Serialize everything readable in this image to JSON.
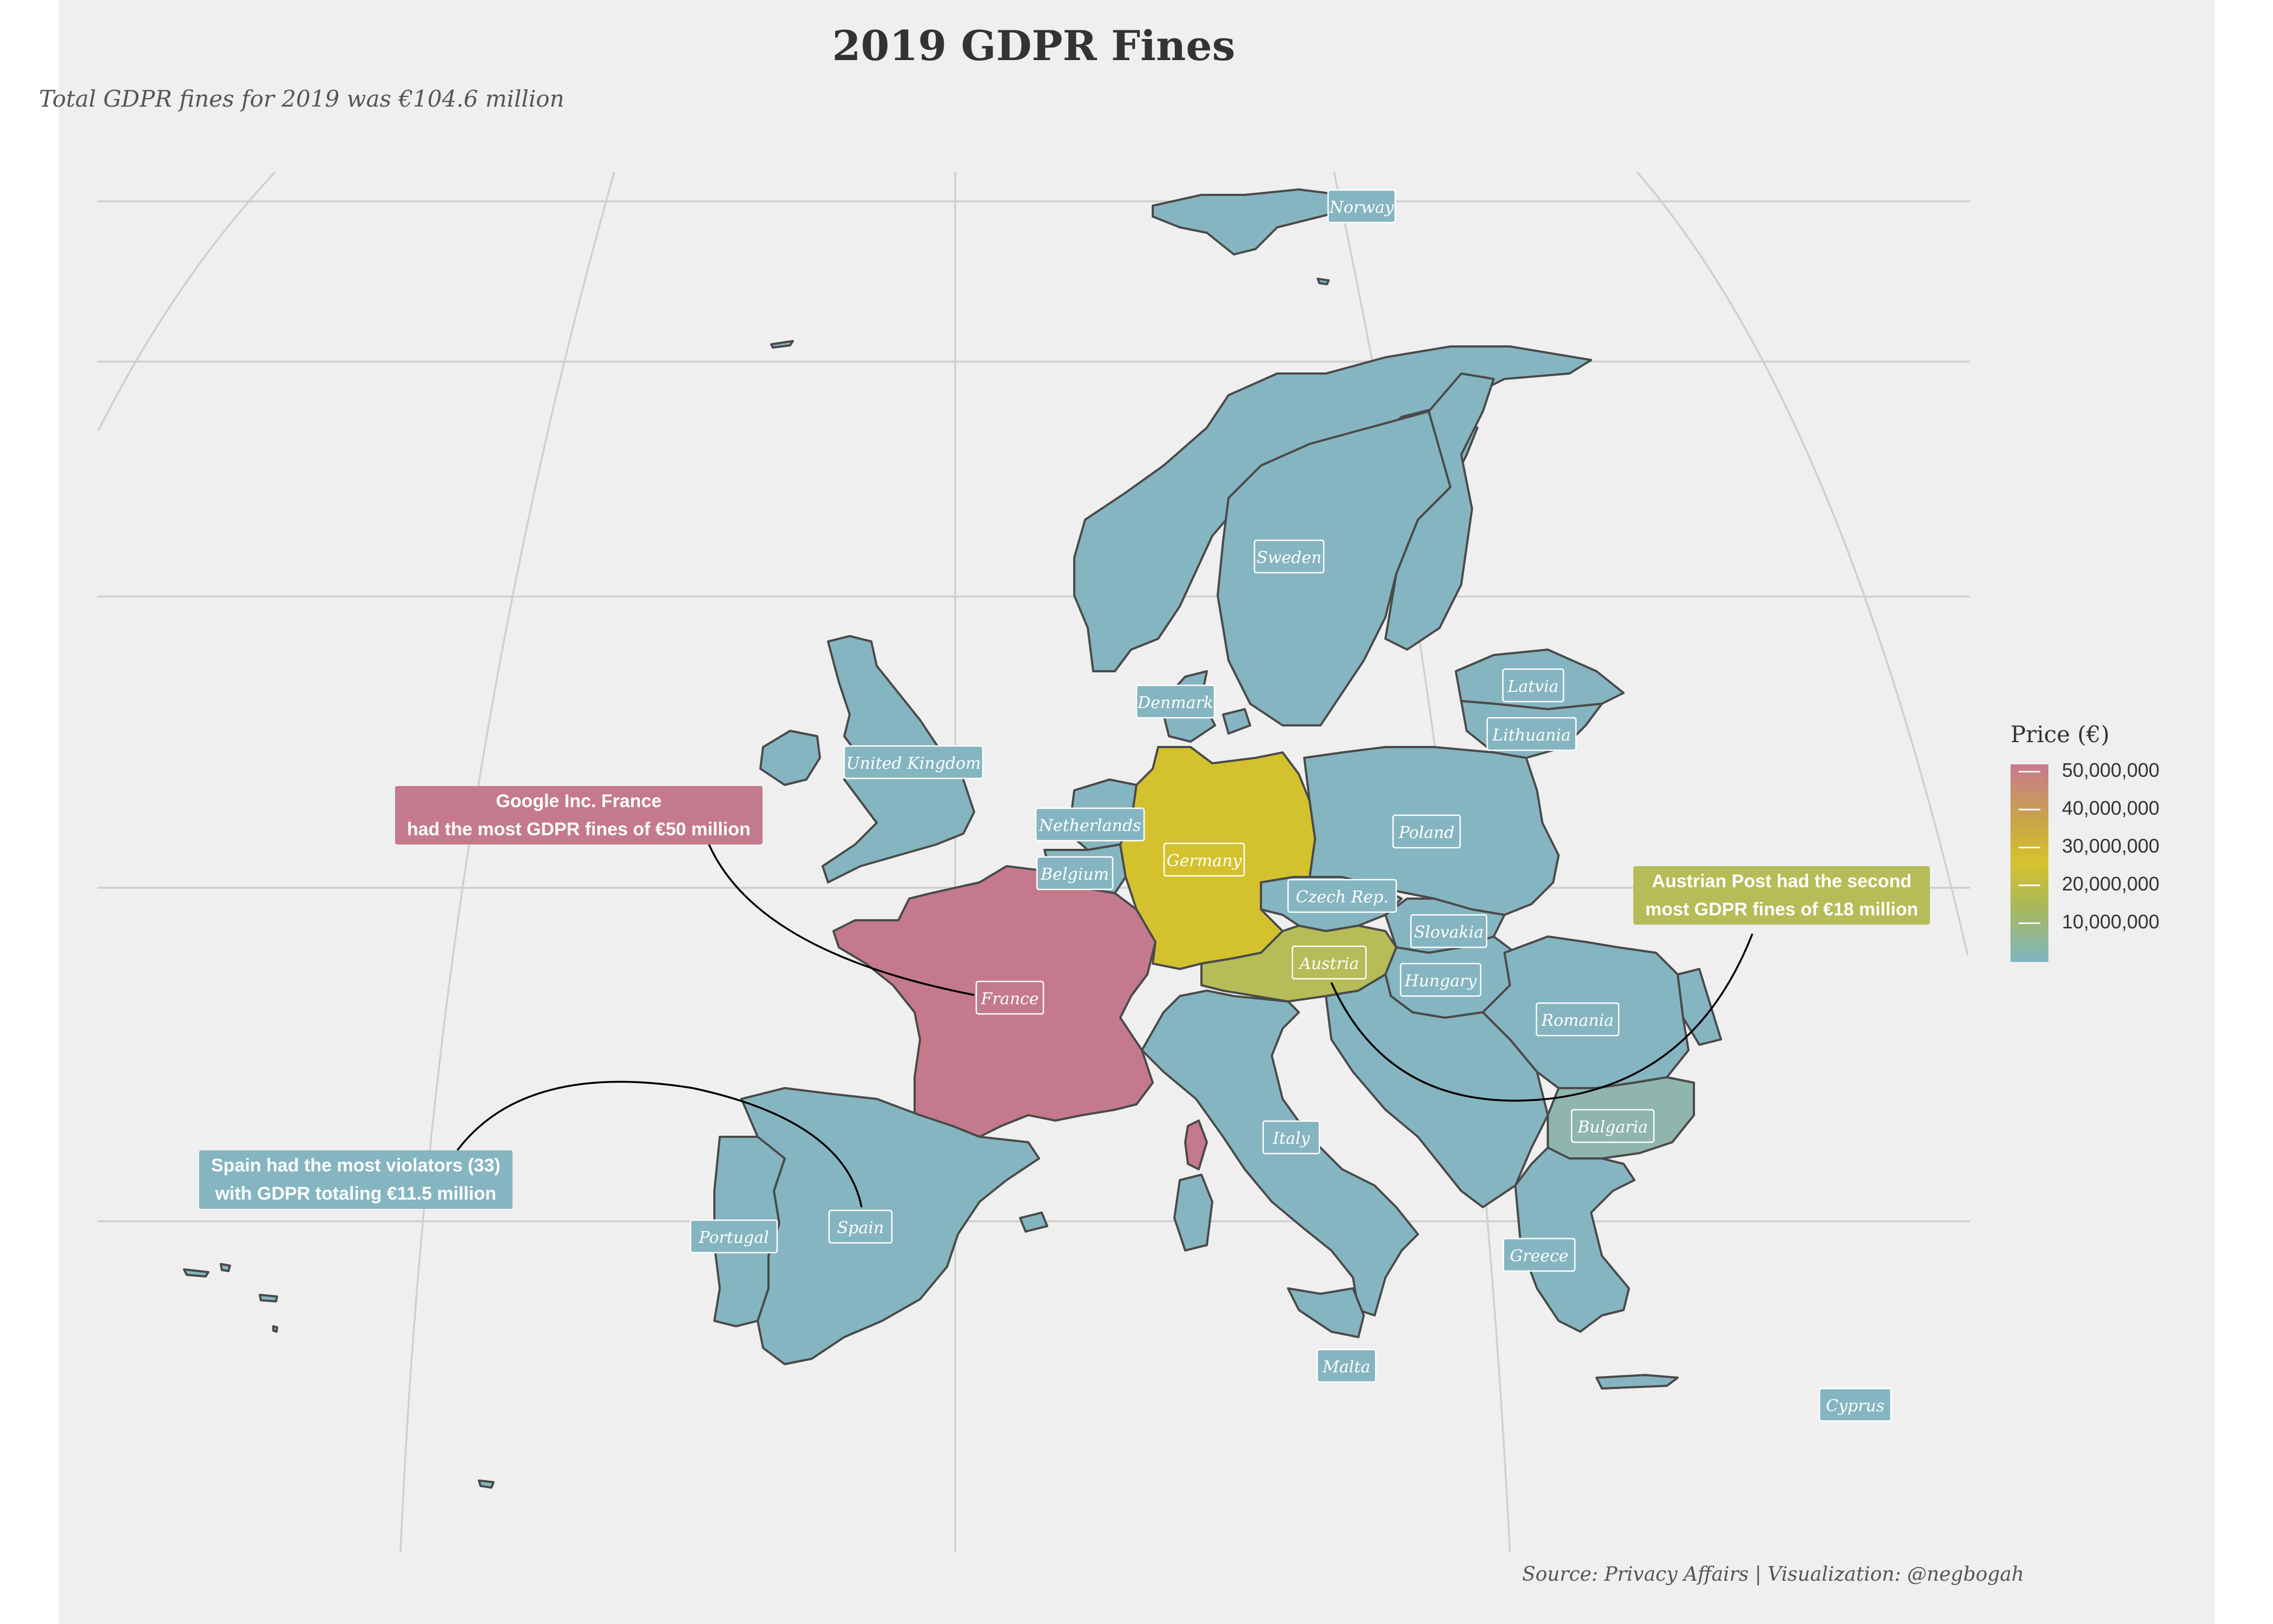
{
  "title": "2019 GDPR Fines",
  "subtitle": "Total GDPR fines for 2019 was €104.6 million",
  "caption": "Source: Privacy Affairs | Visualization: @negbogah",
  "legend": {
    "title": "Price (€)",
    "labels": [
      "50,000,000",
      "40,000,000",
      "30,000,000",
      "20,000,000",
      "10,000,000"
    ],
    "colors": {
      "low": "#7fb6c3",
      "mid": "#d6c22e",
      "high": "#c97a8f"
    }
  },
  "colors": {
    "default": "#85b5c0",
    "france": "#c47a8c",
    "germany": "#d4c12e",
    "austria": "#b5bc58",
    "bulgaria": "#8fb5ad",
    "label_bg": "#85b5c0"
  },
  "countries": {
    "norway": "Norway",
    "sweden": "Sweden",
    "latvia": "Latvia",
    "lithuania": "Lithuania",
    "denmark": "Denmark",
    "united_kingdom": "United Kingdom",
    "netherlands": "Netherlands",
    "belgium": "Belgium",
    "germany": "Germany",
    "poland": "Poland",
    "czech_rep": "Czech Rep.",
    "slovakia": "Slovakia",
    "austria": "Austria",
    "hungary": "Hungary",
    "romania": "Romania",
    "france": "France",
    "italy": "Italy",
    "bulgaria": "Bulgaria",
    "portugal": "Portugal",
    "spain": "Spain",
    "greece": "Greece",
    "malta": "Malta",
    "cyprus": "Cyprus"
  },
  "annotations": {
    "france": "Google Inc. France\nhad the most GDPR fines of €50 million",
    "austria": "Austrian Post had the second\nmost GDPR fines of €18 million",
    "spain": "Spain had the most violators (33)\nwith GDPR totaling €11.5 million"
  }
}
